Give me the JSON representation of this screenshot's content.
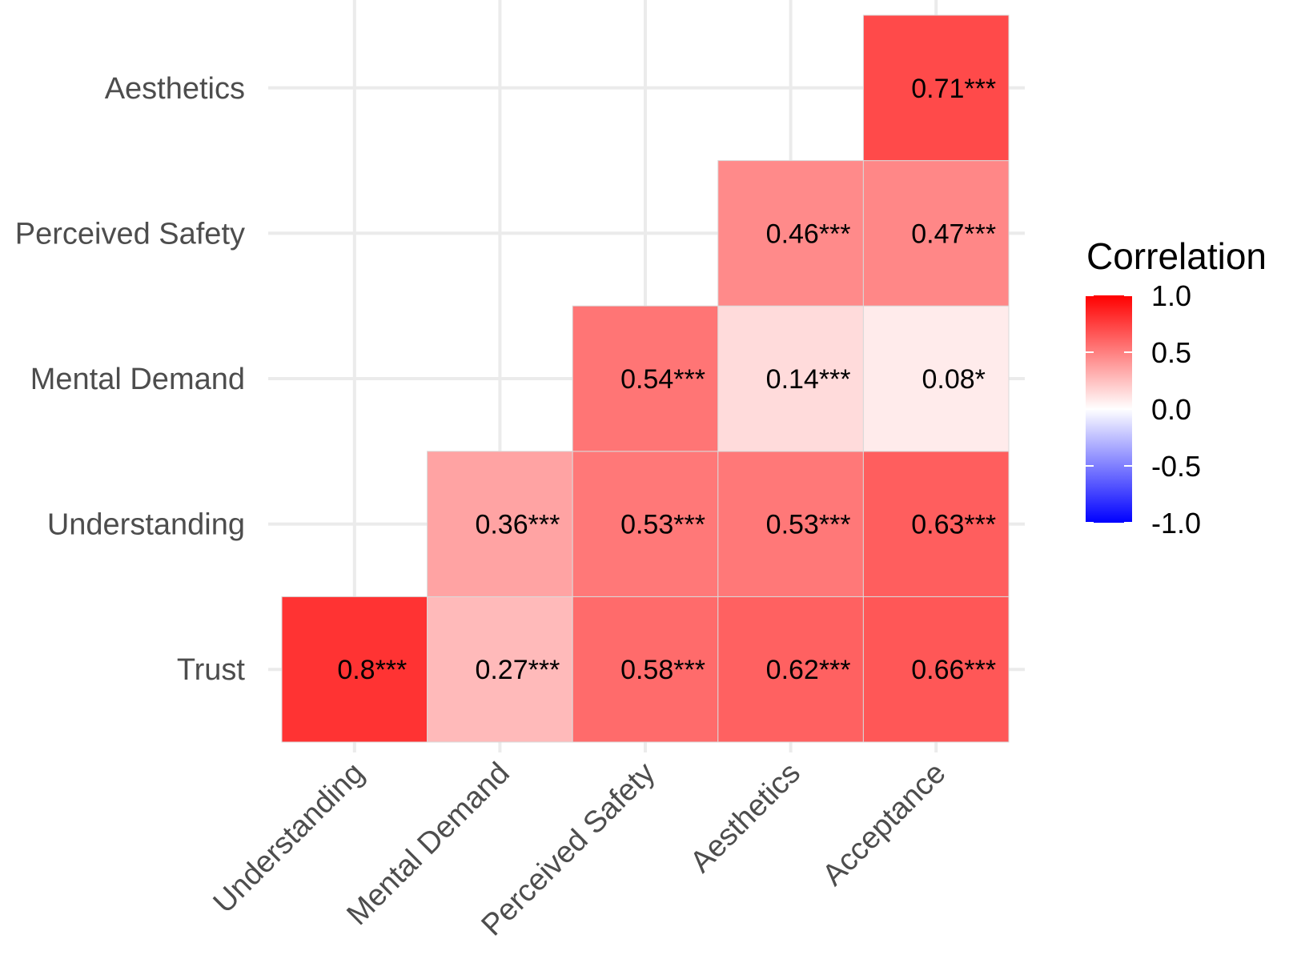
{
  "chart_data": {
    "type": "heatmap",
    "title": "",
    "xlabel": "",
    "ylabel": "",
    "x_categories": [
      "Understanding",
      "Mental Demand",
      "Perceived Safety",
      "Aesthetics",
      "Acceptance"
    ],
    "y_categories": [
      "Trust",
      "Understanding",
      "Mental Demand",
      "Perceived Safety",
      "Aesthetics"
    ],
    "cells": [
      {
        "x": "Understanding",
        "y": "Trust",
        "value": 0.8,
        "label": "0.8***"
      },
      {
        "x": "Mental Demand",
        "y": "Trust",
        "value": 0.27,
        "label": "0.27***"
      },
      {
        "x": "Perceived Safety",
        "y": "Trust",
        "value": 0.58,
        "label": "0.58***"
      },
      {
        "x": "Aesthetics",
        "y": "Trust",
        "value": 0.62,
        "label": "0.62***"
      },
      {
        "x": "Acceptance",
        "y": "Trust",
        "value": 0.66,
        "label": "0.66***"
      },
      {
        "x": "Mental Demand",
        "y": "Understanding",
        "value": 0.36,
        "label": "0.36***"
      },
      {
        "x": "Perceived Safety",
        "y": "Understanding",
        "value": 0.53,
        "label": "0.53***"
      },
      {
        "x": "Aesthetics",
        "y": "Understanding",
        "value": 0.53,
        "label": "0.53***"
      },
      {
        "x": "Acceptance",
        "y": "Understanding",
        "value": 0.63,
        "label": "0.63***"
      },
      {
        "x": "Perceived Safety",
        "y": "Mental Demand",
        "value": 0.54,
        "label": "0.54***"
      },
      {
        "x": "Aesthetics",
        "y": "Mental Demand",
        "value": 0.14,
        "label": "0.14***"
      },
      {
        "x": "Acceptance",
        "y": "Mental Demand",
        "value": 0.08,
        "label": "0.08*"
      },
      {
        "x": "Aesthetics",
        "y": "Perceived Safety",
        "value": 0.46,
        "label": "0.46***"
      },
      {
        "x": "Acceptance",
        "y": "Perceived Safety",
        "value": 0.47,
        "label": "0.47***"
      },
      {
        "x": "Acceptance",
        "y": "Aesthetics",
        "value": 0.71,
        "label": "0.71***"
      }
    ],
    "legend": {
      "title": "Correlation",
      "position": "right",
      "ticks": [
        1.0,
        0.5,
        0.0,
        -0.5,
        -1.0
      ],
      "tick_labels": [
        "1.0",
        "0.5",
        "0.0",
        "-0.5",
        "-1.0"
      ],
      "range": [
        -1,
        1
      ],
      "low_color": "#0000ff",
      "mid_color": "#ffffff",
      "high_color": "#ff0000"
    },
    "grid": true
  }
}
